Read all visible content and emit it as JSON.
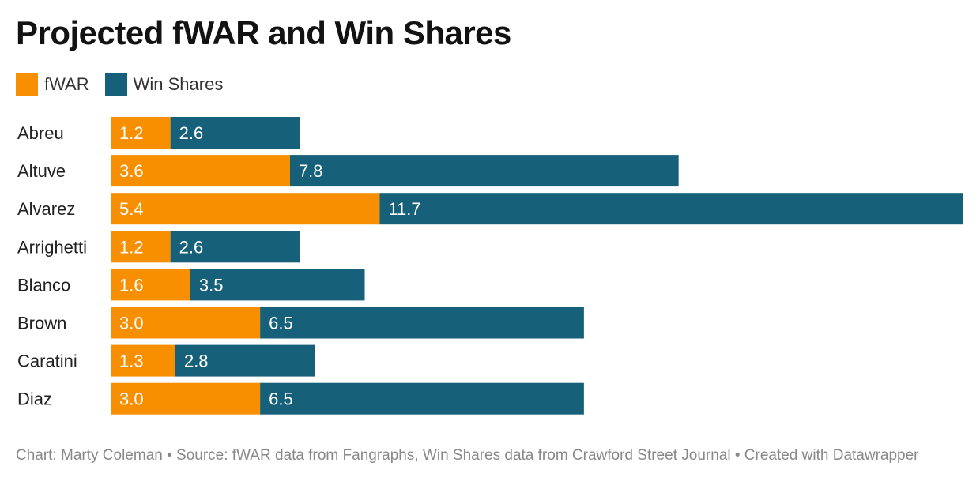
{
  "title": "Projected fWAR and Win Shares",
  "footer": "Chart: Marty Coleman • Source: fWAR data from Fangraphs, Win Shares data from Crawford Street Journal • Created with Datawrapper",
  "colors": {
    "fwar": "#f78f00",
    "win_shares": "#17607a",
    "label_text": "#ffffff",
    "category_text": "#222222"
  },
  "chart_data": {
    "type": "bar",
    "orientation": "horizontal",
    "stacked": true,
    "title": "Projected fWAR and Win Shares",
    "categories": [
      "Abreu",
      "Altuve",
      "Alvarez",
      "Arrighetti",
      "Blanco",
      "Brown",
      "Caratini",
      "Diaz"
    ],
    "series": [
      {
        "name": "fWAR",
        "values": [
          "1.2",
          "3.6",
          "5.4",
          "1.2",
          "1.6",
          "3.0",
          "1.3",
          "3.0"
        ]
      },
      {
        "name": "Win Shares",
        "values": [
          "2.6",
          "7.8",
          "11.7",
          "2.6",
          "3.5",
          "6.5",
          "2.8",
          "6.5"
        ]
      }
    ],
    "xlim": [
      0,
      17.1
    ],
    "grid": false,
    "legend": "top-left",
    "data_labels": true
  }
}
